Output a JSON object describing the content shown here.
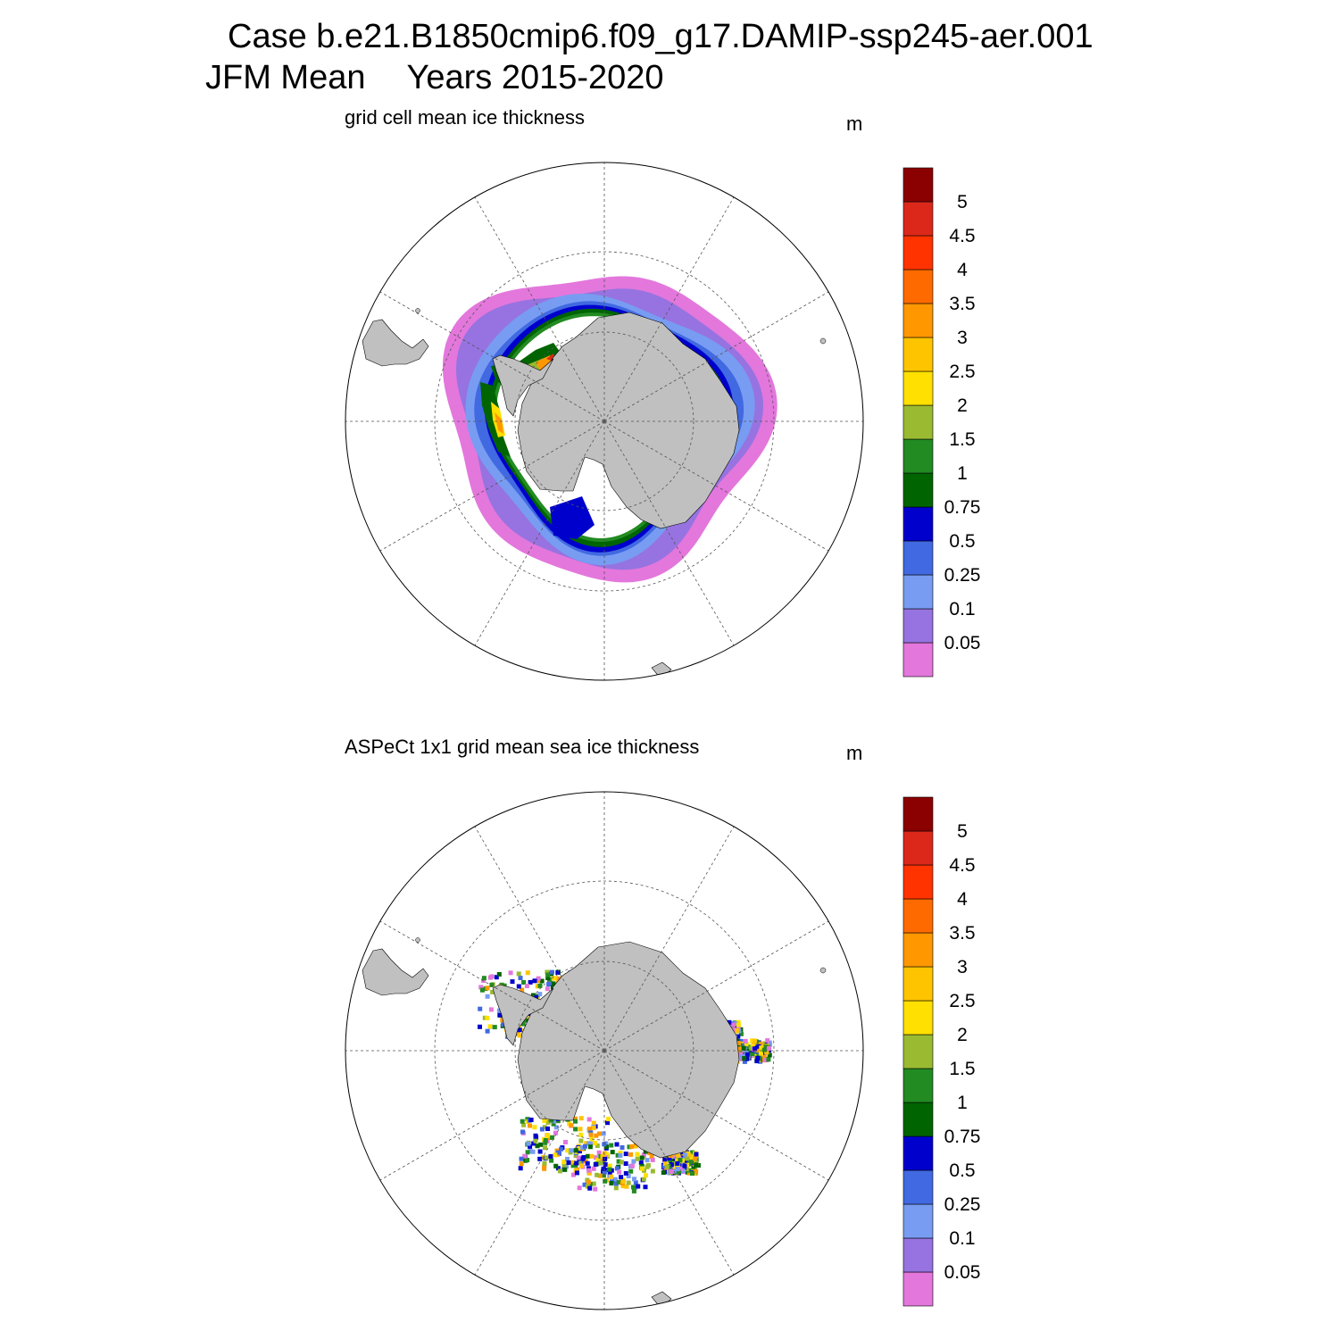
{
  "header": {
    "case_line": "Case b.e21.B1850cmip6.f09_g17.DAMIP-ssp245-aer.001",
    "period": "JFM Mean",
    "years": "Years 2015-2020"
  },
  "colorbar": {
    "labels": [
      "0.05",
      "0.1",
      "0.25",
      "0.5",
      "0.75",
      "1",
      "1.5",
      "2",
      "2.5",
      "3",
      "3.5",
      "4",
      "4.5",
      "5"
    ],
    "colors": [
      "#e377dc",
      "#9673e0",
      "#789cf2",
      "#4169e1",
      "#0000cd",
      "#006400",
      "#228b22",
      "#9aba32",
      "#ffe000",
      "#ffc400",
      "#ff9800",
      "#ff6a00",
      "#ff3300",
      "#dc281a",
      "#8b0000"
    ]
  },
  "colors": {
    "land": "#c0c0c0",
    "ocean": "#ffffff",
    "grid": "#555555"
  },
  "panels": [
    {
      "title": "grid cell mean ice thickness",
      "unit": "m",
      "field": "model"
    },
    {
      "title": "ASPeCt 1x1 grid mean sea ice thickness",
      "unit": "m",
      "field": "observations"
    }
  ]
}
